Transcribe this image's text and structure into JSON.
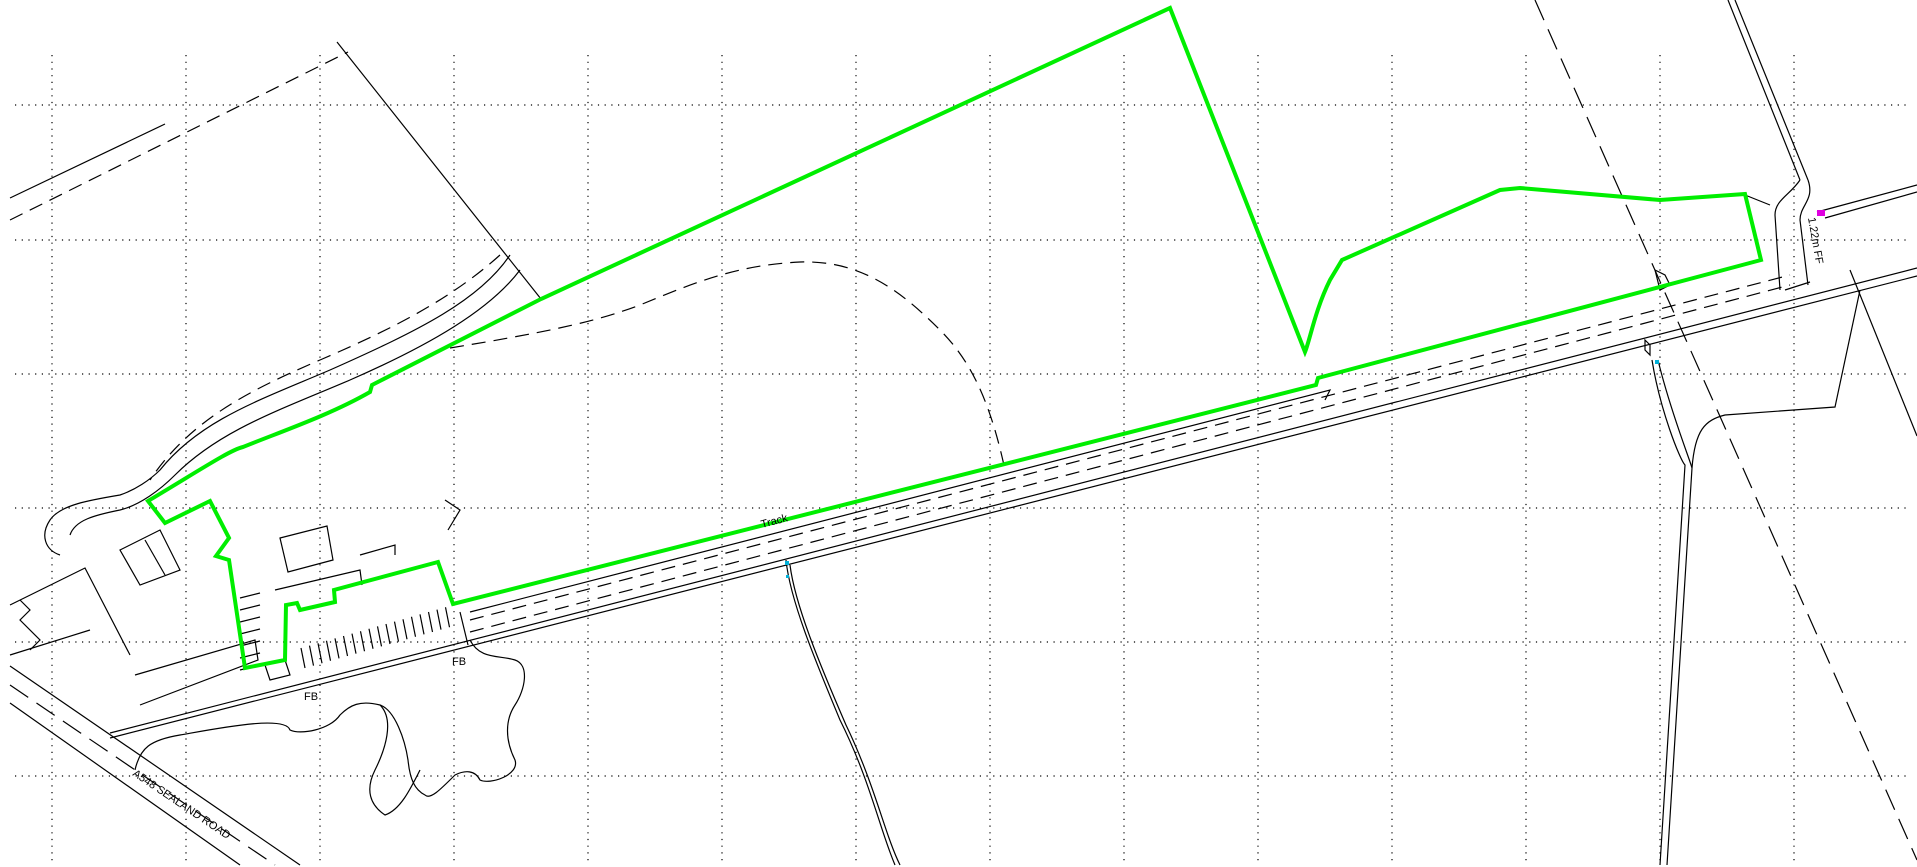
{
  "labels": {
    "road": "A548   SEALAND   ROAD",
    "track": "Track",
    "fb_west": "FB",
    "fb_east": "FB",
    "fence": "1.22m  FF"
  },
  "colors": {
    "site_boundary": "#00ee00",
    "marker_cyan": "#00b0d8",
    "marker_magenta": "#e000e0",
    "linework": "#000000",
    "background": "#ffffff"
  },
  "grid": {
    "style": "dotted",
    "orientation": "orthogonal"
  }
}
